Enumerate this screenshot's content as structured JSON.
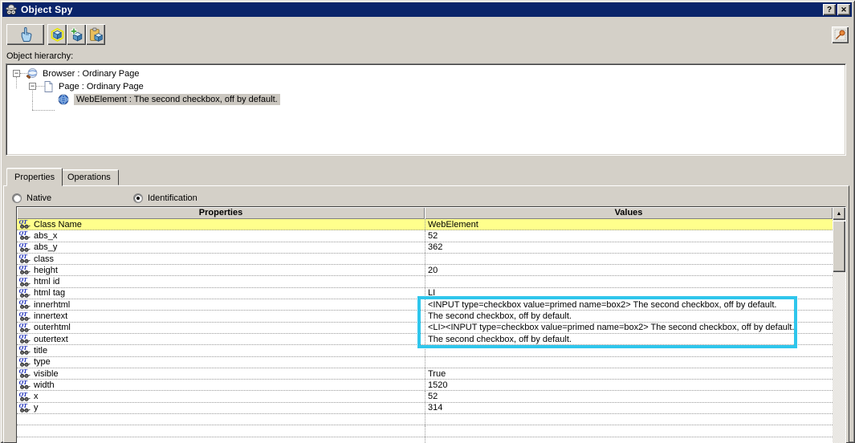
{
  "window": {
    "title": "Object Spy",
    "help_button": "?",
    "close_button": "✕"
  },
  "colors": {
    "titlebar": "#0A246A",
    "chrome": "#D4D0C8",
    "row_highlight": "#FFFF8C",
    "value_highlight_box": "#2FC6EC",
    "tree_selection": "#CBC7C0"
  },
  "toolbar": {
    "buttons": [
      {
        "name": "point-button",
        "icon": "hand-pointer-icon"
      },
      {
        "name": "highlight-in-application-button",
        "icon": "highlight-cube-icon"
      },
      {
        "name": "add-object-button",
        "icon": "add-cube-icon"
      },
      {
        "name": "copy-to-clipboard-button",
        "icon": "clipboard-cube-icon"
      }
    ],
    "pin_button": {
      "name": "keep-on-top-button",
      "icon": "pushpin-icon"
    }
  },
  "hierarchy": {
    "label": "Object hierarchy:",
    "tree": [
      {
        "label": "Browser : Ordinary Page",
        "icon": "browser-icon",
        "expanded": true
      },
      {
        "label": "Page : Ordinary Page",
        "icon": "page-icon",
        "expanded": true
      },
      {
        "label": "WebElement :  The second checkbox, off by default.",
        "icon": "webelement-icon",
        "selected": true
      }
    ]
  },
  "tabs": [
    {
      "label": "Properties",
      "active": true
    },
    {
      "label": "Operations",
      "active": false
    }
  ],
  "radios": [
    {
      "label": "Native",
      "checked": false
    },
    {
      "label": "Identification",
      "checked": true
    }
  ],
  "grid": {
    "columns": [
      "Properties",
      "Values"
    ],
    "rows": [
      {
        "name": "Class Name",
        "value": "WebElement",
        "highlight": true
      },
      {
        "name": "abs_x",
        "value": "52"
      },
      {
        "name": "abs_y",
        "value": "362"
      },
      {
        "name": "class",
        "value": ""
      },
      {
        "name": "height",
        "value": "20"
      },
      {
        "name": "html id",
        "value": ""
      },
      {
        "name": "html tag",
        "value": "LI"
      },
      {
        "name": "innerhtml",
        "value": "<INPUT type=checkbox value=primed name=box2> The second checkbox, off by default.",
        "boxed": true
      },
      {
        "name": "innertext",
        "value": "The second checkbox, off by default.",
        "boxed": true
      },
      {
        "name": "outerhtml",
        "value": "<LI><INPUT type=checkbox value=primed name=box2> The second checkbox, off by default.",
        "boxed": true
      },
      {
        "name": "outertext",
        "value": "The second checkbox, off by default.",
        "boxed": true
      },
      {
        "name": "title",
        "value": ""
      },
      {
        "name": "type",
        "value": ""
      },
      {
        "name": "visible",
        "value": "True"
      },
      {
        "name": "width",
        "value": "1520"
      },
      {
        "name": "x",
        "value": "52"
      },
      {
        "name": "y",
        "value": "314"
      }
    ]
  }
}
